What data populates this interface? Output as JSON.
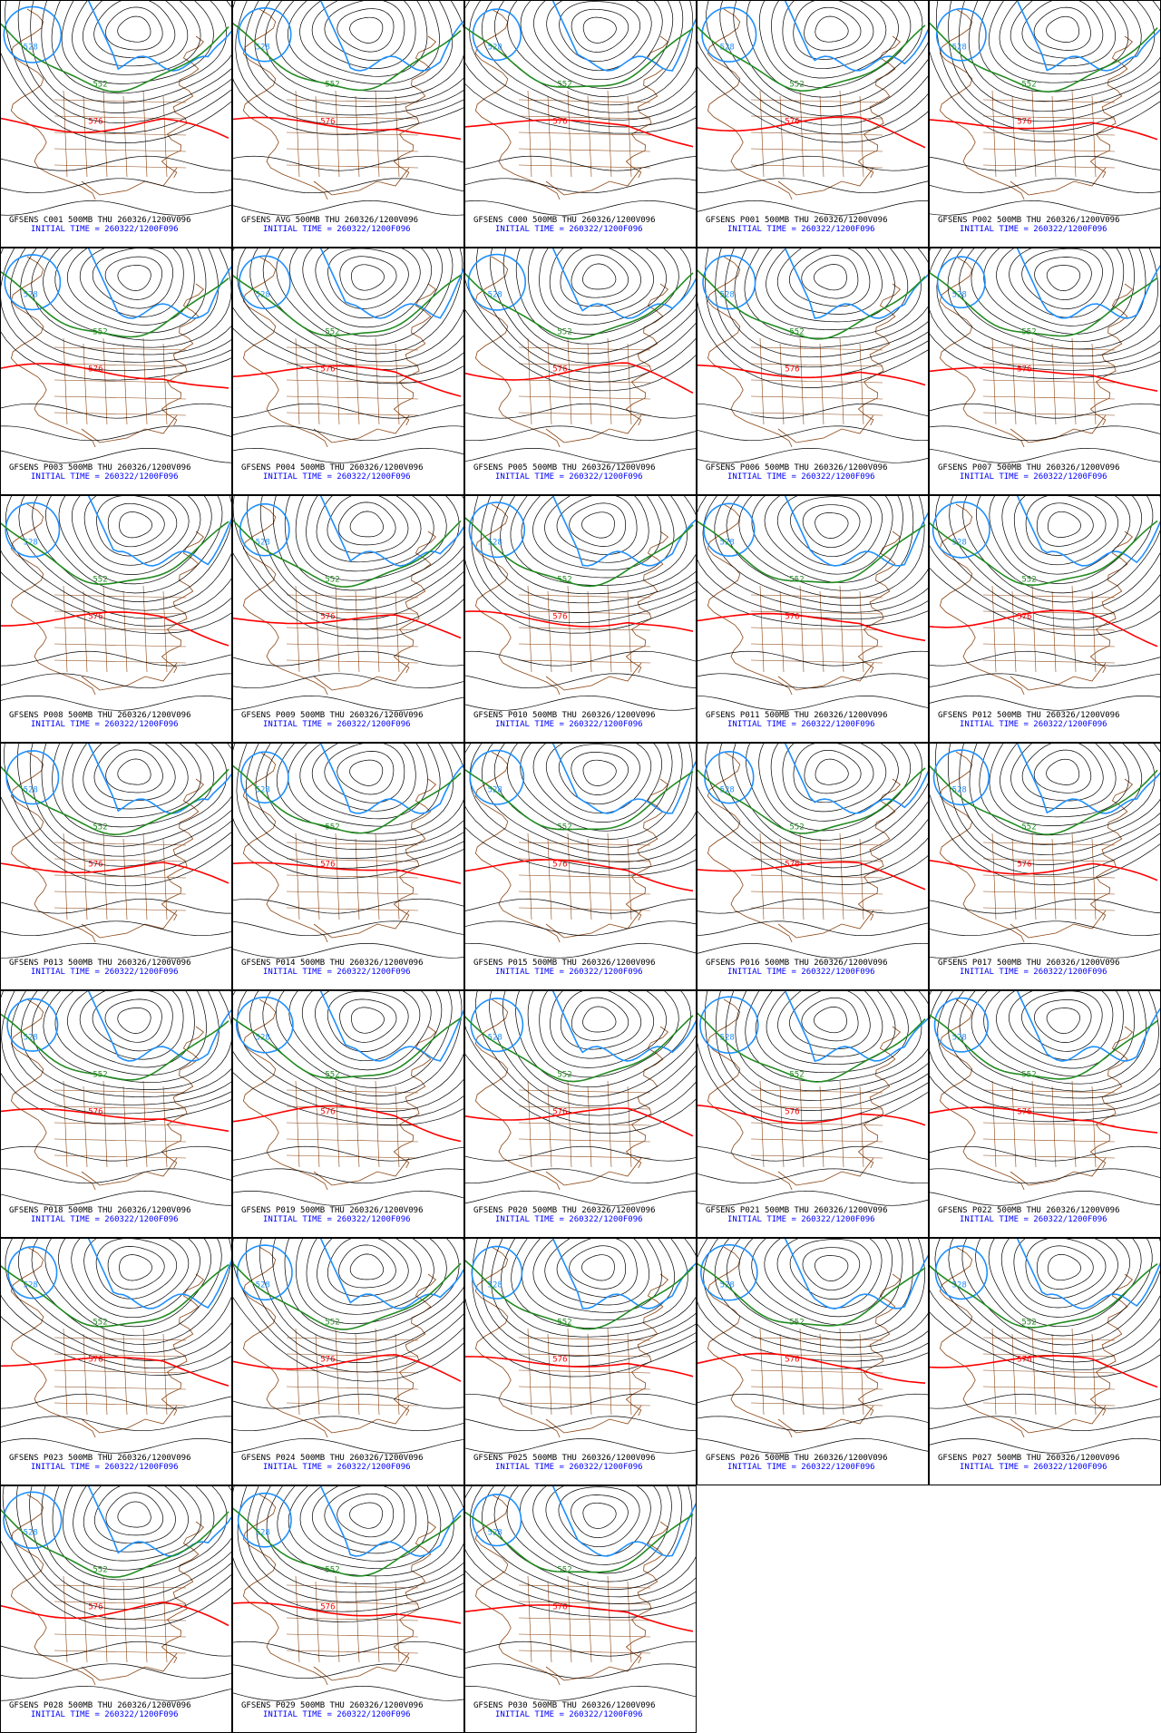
{
  "panels": [
    {
      "title": "GFSENS C001 500MB THU 260326/1200V096"
    },
    {
      "title": "GFSENS AVG 500MB THU 260326/1200V096"
    },
    {
      "title": "GFSENS C000 500MB THU 260326/1200V096"
    },
    {
      "title": "GFSENS P001 500MB THU 260326/1200V096"
    },
    {
      "title": "GFSENS P002 500MB THU 260326/1200V096"
    },
    {
      "title": "GFSENS P003 500MB THU 260326/1200V096"
    },
    {
      "title": "GFSENS P004 500MB THU 260326/1200V096"
    },
    {
      "title": "GFSENS P005 500MB THU 260326/1200V096"
    },
    {
      "title": "GFSENS P006 500MB THU 260326/1200V096"
    },
    {
      "title": "GFSENS P007 500MB THU 260326/1200V096"
    },
    {
      "title": "GFSENS P008 500MB THU 260326/1200V096"
    },
    {
      "title": "GFSENS P009 500MB THU 260326/1200V096"
    },
    {
      "title": "GFSENS P010 500MB THU 260326/1200V096"
    },
    {
      "title": "GFSENS P011 500MB THU 260326/1200V096"
    },
    {
      "title": "GFSENS P012 500MB THU 260326/1200V096"
    },
    {
      "title": "GFSENS P013 500MB THU 260326/1200V096"
    },
    {
      "title": "GFSENS P014 500MB THU 260326/1200V096"
    },
    {
      "title": "GFSENS P015 500MB THU 260326/1200V096"
    },
    {
      "title": "GFSENS P016 500MB THU 260326/1200V096"
    },
    {
      "title": "GFSENS P017 500MB THU 260326/1200V096"
    },
    {
      "title": "GFSENS P018 500MB THU 260326/1200V096"
    },
    {
      "title": "GFSENS P019 500MB THU 260326/1200V096"
    },
    {
      "title": "GFSENS P020 500MB THU 260326/1200V096"
    },
    {
      "title": "GFSENS P021 500MB THU 260326/1200V096"
    },
    {
      "title": "GFSENS P022 500MB THU 260326/1200V096"
    },
    {
      "title": "GFSENS P023 500MB THU 260326/1200V096"
    },
    {
      "title": "GFSENS P024 500MB THU 260326/1200V096"
    },
    {
      "title": "GFSENS P025 500MB THU 260326/1200V096"
    },
    {
      "title": "GFSENS P026 500MB THU 260326/1200V096"
    },
    {
      "title": "GFSENS P027 500MB THU 260326/1200V096"
    },
    {
      "title": "GFSENS P028 500MB THU 260326/1200V096"
    },
    {
      "title": "GFSENS P029 500MB THU 260326/1200V096"
    },
    {
      "title": "GFSENS P030 500MB THU 260326/1200V096"
    }
  ],
  "initial_time": "INITIAL TIME = 260322/1200F096",
  "contour_labels": {
    "blue": "528",
    "green": "552",
    "red": "576"
  }
}
